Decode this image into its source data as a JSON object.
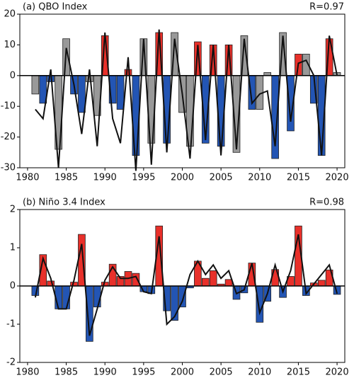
{
  "chart_data": [
    {
      "type": "bar",
      "title": "(a) QBO Index",
      "annotation": "R=0.97",
      "x": [
        1981,
        1982,
        1983,
        1984,
        1985,
        1986,
        1987,
        1988,
        1989,
        1990,
        1991,
        1992,
        1993,
        1994,
        1995,
        1996,
        1997,
        1998,
        1999,
        2000,
        2001,
        2002,
        2003,
        2004,
        2005,
        2006,
        2007,
        2008,
        2009,
        2010,
        2011,
        2012,
        2013,
        2014,
        2015,
        2016,
        2017,
        2018,
        2019,
        2020
      ],
      "series": [
        {
          "type": "bar",
          "values": [
            -6,
            -9,
            -2,
            -24,
            12,
            -6,
            -12,
            -2,
            -13,
            13,
            -9,
            -11,
            2,
            -26,
            12,
            -22,
            14,
            -22,
            14,
            -12,
            -23,
            11,
            -22,
            10,
            -23,
            10,
            -25,
            13,
            -11,
            -11,
            1,
            -27,
            14,
            -18,
            7,
            7,
            -9,
            -26,
            12,
            1
          ],
          "colors": [
            "#999999",
            "#2355b4",
            "#2355b4",
            "#999999",
            "#999999",
            "#2355b4",
            "#2355b4",
            "#999999",
            "#999999",
            "#e8302a",
            "#2355b4",
            "#2355b4",
            "#e8302a",
            "#2355b4",
            "#999999",
            "#999999",
            "#e8302a",
            "#2355b4",
            "#999999",
            "#999999",
            "#999999",
            "#e8302a",
            "#2355b4",
            "#e8302a",
            "#2355b4",
            "#e8302a",
            "#999999",
            "#999999",
            "#2355b4",
            "#999999",
            "#999999",
            "#2355b4",
            "#999999",
            "#2355b4",
            "#e8302a",
            "#999999",
            "#2355b4",
            "#2355b4",
            "#e8302a",
            "#999999"
          ]
        },
        {
          "type": "line",
          "color": "#111111",
          "values": [
            -11,
            -14,
            2,
            -30,
            9,
            -3,
            -19,
            2,
            -23,
            14,
            -14,
            -22,
            6,
            -31,
            12,
            -29,
            15,
            -25,
            12,
            -6,
            -27,
            10,
            -21,
            10,
            -26,
            10,
            -24,
            12,
            -9,
            -6,
            -5,
            -23,
            13,
            -15,
            4,
            5,
            0,
            -26,
            13,
            0
          ]
        }
      ],
      "xlim": [
        1979,
        2021
      ],
      "xticks": [
        1980,
        1985,
        1990,
        1995,
        2000,
        2005,
        2010,
        2015,
        2020
      ],
      "ylim": [
        -30,
        20
      ],
      "yticks": [
        -30,
        -20,
        -10,
        0,
        10,
        20
      ]
    },
    {
      "type": "bar",
      "title": "(b) Niño 3.4 Index",
      "annotation": "R=0.98",
      "x": [
        1981,
        1982,
        1983,
        1984,
        1985,
        1986,
        1987,
        1988,
        1989,
        1990,
        1991,
        1992,
        1993,
        1994,
        1995,
        1996,
        1997,
        1998,
        1999,
        2000,
        2001,
        2002,
        2003,
        2004,
        2005,
        2006,
        2007,
        2008,
        2009,
        2010,
        2011,
        2012,
        2013,
        2014,
        2015,
        2016,
        2017,
        2018,
        2019,
        2020
      ],
      "series": [
        {
          "type": "bar",
          "values": [
            -0.25,
            0.82,
            0.13,
            -0.6,
            -0.6,
            0.1,
            1.35,
            -1.45,
            -0.55,
            0.1,
            0.57,
            0.25,
            0.38,
            0.33,
            -0.15,
            -0.2,
            1.57,
            -0.65,
            -0.9,
            -0.55,
            -0.05,
            0.65,
            0.2,
            0.4,
            0.05,
            0.17,
            -0.35,
            -0.18,
            0.6,
            -0.95,
            -0.4,
            0.43,
            -0.3,
            0.25,
            1.57,
            -0.25,
            0.08,
            0.15,
            0.42,
            -0.22
          ],
          "colors": [
            "#2355b4",
            "#e8302a",
            "#e8302a",
            "#2355b4",
            "#2355b4",
            "#e8302a",
            "#e8302a",
            "#2355b4",
            "#2355b4",
            "#e8302a",
            "#e8302a",
            "#e8302a",
            "#e8302a",
            "#e8302a",
            "#2355b4",
            "#2355b4",
            "#e8302a",
            "#2355b4",
            "#2355b4",
            "#2355b4",
            "#2355b4",
            "#e8302a",
            "#e8302a",
            "#e8302a",
            "#e8302a",
            "#e8302a",
            "#2355b4",
            "#2355b4",
            "#e8302a",
            "#2355b4",
            "#2355b4",
            "#e8302a",
            "#2355b4",
            "#e8302a",
            "#e8302a",
            "#2355b4",
            "#e8302a",
            "#e8302a",
            "#e8302a",
            "#2355b4"
          ]
        },
        {
          "type": "line",
          "color": "#111111",
          "values": [
            -0.3,
            0.72,
            0.2,
            -0.6,
            -0.6,
            0.15,
            1.1,
            -1.3,
            -0.6,
            0.15,
            0.5,
            0.2,
            0.2,
            0.25,
            -0.15,
            -0.2,
            1.3,
            -1.0,
            -0.8,
            -0.4,
            0.3,
            0.65,
            0.3,
            0.55,
            0.2,
            0.4,
            -0.2,
            -0.1,
            0.6,
            -0.7,
            -0.2,
            0.55,
            -0.15,
            0.4,
            1.35,
            -0.2,
            0.05,
            0.3,
            0.55,
            -0.2
          ]
        }
      ],
      "xlim": [
        1979,
        2021
      ],
      "xticks": [
        1980,
        1985,
        1990,
        1995,
        2000,
        2005,
        2010,
        2015,
        2020
      ],
      "ylim": [
        -2,
        2
      ],
      "yticks": [
        -2,
        -1,
        0,
        1,
        2
      ]
    }
  ]
}
